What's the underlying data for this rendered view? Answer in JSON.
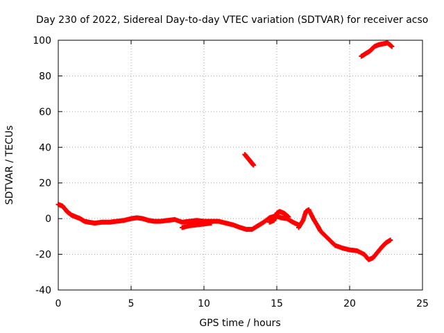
{
  "chart_data": {
    "type": "scatter",
    "title": "Day 230 of 2022, Sidereal Day-to-day VTEC variation (SDTVAR) for receiver acso",
    "xlabel": "GPS time / hours",
    "ylabel": "SDTVAR / TECUs",
    "xlim": [
      0,
      25
    ],
    "ylim": [
      -40,
      100
    ],
    "x_ticks": [
      0,
      5,
      10,
      15,
      20,
      25
    ],
    "y_ticks": [
      -40,
      -20,
      0,
      20,
      40,
      60,
      80,
      100
    ],
    "grid": true,
    "legend": "none",
    "marker": "plus",
    "series": [
      {
        "name": "SDTVAR",
        "color": "#ff0000",
        "segments": [
          {
            "x": [
              0.0,
              0.3,
              0.6,
              0.9,
              1.2,
              1.5,
              1.8,
              2.1,
              2.5,
              3.0,
              3.5,
              4.0,
              4.5,
              5.0,
              5.4,
              5.8,
              6.2,
              6.6,
              7.0,
              7.5,
              8.0,
              8.5,
              9.0,
              9.5,
              10.0,
              10.5,
              11.0,
              11.5,
              12.0,
              12.5,
              12.9,
              13.3,
              13.7,
              14.1,
              14.5,
              14.9,
              15.3,
              15.7,
              16.1,
              16.5
            ],
            "y": [
              8.0,
              7.0,
              4.0,
              2.0,
              1.0,
              0.0,
              -1.5,
              -2.0,
              -2.5,
              -2.0,
              -2.0,
              -1.5,
              -1.0,
              0.0,
              0.5,
              0.0,
              -1.0,
              -1.5,
              -1.5,
              -1.0,
              -0.5,
              -2.0,
              -1.5,
              -1.0,
              -1.5,
              -1.5,
              -1.5,
              -2.5,
              -3.5,
              -5.0,
              -6.0,
              -6.0,
              -4.0,
              -2.0,
              0.5,
              1.5,
              0.5,
              0.0,
              -2.0,
              -3.5
            ]
          },
          {
            "x": [
              8.5,
              9.0,
              9.5,
              10.0,
              10.5
            ],
            "y": [
              -5.0,
              -4.0,
              -3.5,
              -3.0,
              -2.5
            ]
          },
          {
            "x": [
              14.5,
              14.8,
              15.0,
              15.2,
              15.5,
              15.8
            ],
            "y": [
              -2.0,
              -1.0,
              3.0,
              4.0,
              3.0,
              1.0
            ]
          },
          {
            "x": [
              16.5,
              16.8,
              17.0,
              17.2,
              17.5,
              17.8,
              18.0,
              18.5,
              19.0,
              19.5,
              20.0,
              20.5,
              21.0,
              21.3,
              21.6,
              21.9,
              22.2,
              22.5,
              22.8
            ],
            "y": [
              -5.0,
              -1.0,
              4.0,
              5.0,
              0.0,
              -4.0,
              -7.0,
              -11.0,
              -15.0,
              -16.5,
              -17.5,
              -18.0,
              -20.0,
              -23.0,
              -22.0,
              -19.0,
              -16.0,
              -13.5,
              -12.0
            ]
          },
          {
            "x": [
              12.8,
              13.0,
              13.2,
              13.4
            ],
            "y": [
              36.0,
              34.0,
              32.0,
              30.0
            ]
          },
          {
            "x": [
              20.8,
              21.1,
              21.4,
              21.7,
              22.0,
              22.3,
              22.6,
              22.9
            ],
            "y": [
              91.0,
              92.5,
              94.0,
              96.5,
              97.5,
              98.0,
              98.5,
              96.5
            ]
          }
        ]
      }
    ]
  }
}
